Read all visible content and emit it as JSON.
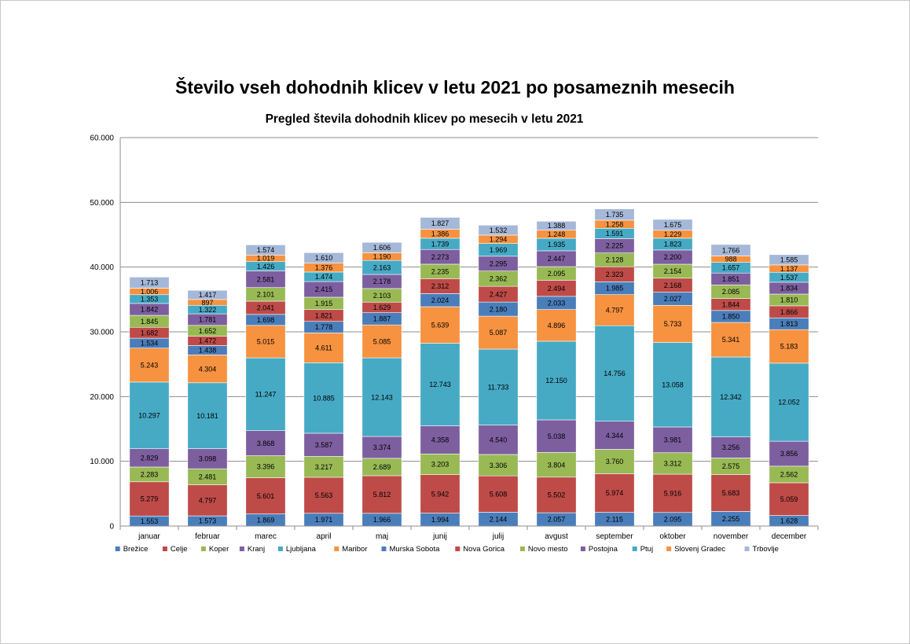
{
  "page": {
    "title": "Število vseh dohodnih klicev v letu 2021 po posameznih mesecih"
  },
  "chart_data": {
    "type": "bar",
    "stacked": true,
    "title": "Pregled števila dohodnih klicev po mesecih v letu 2021",
    "xlabel": "",
    "ylabel": "",
    "ylim": [
      0,
      60000
    ],
    "yticks": [
      0,
      10000,
      20000,
      30000,
      40000,
      50000,
      60000
    ],
    "ytick_labels": [
      "0",
      "10.000",
      "20.000",
      "30.000",
      "40.000",
      "50.000",
      "60.000"
    ],
    "grid": true,
    "legend_position": "bottom",
    "categories": [
      "januar",
      "februar",
      "marec",
      "april",
      "maj",
      "junij",
      "julij",
      "avgust",
      "september",
      "oktober",
      "november",
      "december"
    ],
    "series": [
      {
        "name": "Brežice",
        "color": "#4a7ebb",
        "values": [
          1553,
          1573,
          1869,
          1971,
          1966,
          1994,
          2144,
          2057,
          2115,
          2095,
          2255,
          1628
        ],
        "labels": [
          "1.553",
          "1.573",
          "1.869",
          "1.971",
          "1.966",
          "1.994",
          "2.144",
          "2.057",
          "2.115",
          "2.095",
          "2.255",
          "1.628"
        ]
      },
      {
        "name": "Celje",
        "color": "#be4b48",
        "values": [
          5279,
          4797,
          5601,
          5563,
          5812,
          5942,
          5608,
          5502,
          5974,
          5916,
          5683,
          5059
        ],
        "labels": [
          "5.279",
          "4.797",
          "5.601",
          "5.563",
          "5.812",
          "5.942",
          "5.608",
          "5.502",
          "5.974",
          "5.916",
          "5.683",
          "5.059"
        ]
      },
      {
        "name": "Koper",
        "color": "#98b954",
        "values": [
          2283,
          2481,
          3396,
          3217,
          2689,
          3203,
          3306,
          3804,
          3760,
          3312,
          2575,
          2562
        ],
        "labels": [
          "2.283",
          "2.481",
          "3.396",
          "3.217",
          "2.689",
          "3.203",
          "3.306",
          "3.804",
          "3.760",
          "3.312",
          "2.575",
          "2.562"
        ]
      },
      {
        "name": "Kranj",
        "color": "#7d5fa0",
        "values": [
          2829,
          3098,
          3868,
          3587,
          3374,
          4358,
          4540,
          5038,
          4344,
          3981,
          3256,
          3856
        ],
        "labels": [
          "2.829",
          "3.098",
          "3.868",
          "3.587",
          "3.374",
          "4.358",
          "4.540",
          "5.038",
          "4.344",
          "3.981",
          "3.256",
          "3.856"
        ]
      },
      {
        "name": "Ljubljana",
        "color": "#46aac5",
        "values": [
          10297,
          10181,
          11247,
          10885,
          12143,
          12743,
          11733,
          12150,
          14756,
          13058,
          12342,
          12052
        ],
        "labels": [
          "10.297",
          "10.181",
          "11.247",
          "10.885",
          "12.143",
          "12.743",
          "11.733",
          "12.150",
          "14.756",
          "13.058",
          "12.342",
          "12.052"
        ]
      },
      {
        "name": "Maribor",
        "color": "#f69240",
        "values": [
          5243,
          4304,
          5015,
          4611,
          5085,
          5639,
          5087,
          4896,
          4797,
          5733,
          5341,
          5183
        ],
        "labels": [
          "5.243",
          "4.304",
          "5.015",
          "4.611",
          "5.085",
          "5.639",
          "5.087",
          "4.896",
          "4.797",
          "5.733",
          "5.341",
          "5.183"
        ]
      },
      {
        "name": "Murska Sobota",
        "color": "#4a7ebb",
        "values": [
          1534,
          1438,
          1698,
          1778,
          1887,
          2024,
          2180,
          2033,
          1985,
          2027,
          1850,
          1813
        ],
        "labels": [
          "1.534",
          "1.438",
          "1.698",
          "1.778",
          "1.887",
          "2.024",
          "2.180",
          "2.033",
          "1.985",
          "2.027",
          "1.850",
          "1.813"
        ]
      },
      {
        "name": "Nova Gorica",
        "color": "#be4b48",
        "values": [
          1682,
          1472,
          2041,
          1821,
          1629,
          2312,
          2427,
          2494,
          2323,
          2168,
          1844,
          1866
        ],
        "labels": [
          "1.682",
          "1.472",
          "2.041",
          "1.821",
          "1.629",
          "2.312",
          "2.427",
          "2.494",
          "2.323",
          "2.168",
          "1.844",
          "1.866"
        ]
      },
      {
        "name": "Novo mesto",
        "color": "#98b954",
        "values": [
          1845,
          1652,
          2101,
          1915,
          2103,
          2235,
          2362,
          2095,
          2128,
          2154,
          2085,
          1810
        ],
        "labels": [
          "1.845",
          "1.652",
          "2.101",
          "1.915",
          "2.103",
          "2.235",
          "2.362",
          "2.095",
          "2.128",
          "2.154",
          "2.085",
          "1.810"
        ]
      },
      {
        "name": "Postojna",
        "color": "#7d5fa0",
        "values": [
          1842,
          1781,
          2581,
          2415,
          2178,
          2273,
          2295,
          2447,
          2225,
          2200,
          1851,
          1834
        ],
        "labels": [
          "1.842",
          "1.781",
          "2.581",
          "2.415",
          "2.178",
          "2.273",
          "2.295",
          "2.447",
          "2.225",
          "2.200",
          "1.851",
          "1.834"
        ]
      },
      {
        "name": "Ptuj",
        "color": "#46aac5",
        "values": [
          1353,
          1322,
          1426,
          1474,
          2163,
          1739,
          1969,
          1935,
          1591,
          1823,
          1657,
          1537
        ],
        "labels": [
          "1.353",
          "1.322",
          "1.426",
          "1.474",
          "2.163",
          "1.739",
          "1.969",
          "1.935",
          "1.591",
          "1.823",
          "1.657",
          "1.537"
        ]
      },
      {
        "name": "Slovenj Gradec",
        "color": "#f69240",
        "values": [
          1006,
          897,
          1019,
          1376,
          1190,
          1386,
          1294,
          1248,
          1258,
          1229,
          988,
          1137
        ],
        "labels": [
          "1.006",
          "897",
          "1.019",
          "1.376",
          "1.190",
          "1.386",
          "1.294",
          "1.248",
          "1.258",
          "1.229",
          "988",
          "1.137"
        ]
      },
      {
        "name": "Trbovlje",
        "color": "#a5b8d8",
        "values": [
          1713,
          1417,
          1574,
          1610,
          1606,
          1827,
          1532,
          1388,
          1735,
          1675,
          1766,
          1585
        ],
        "labels": [
          "1.713",
          "1.417",
          "1.574",
          "1.610",
          "1.606",
          "1.827",
          "1.532",
          "1.388",
          "1.735",
          "1.675",
          "1.766",
          "1.585"
        ]
      }
    ]
  }
}
